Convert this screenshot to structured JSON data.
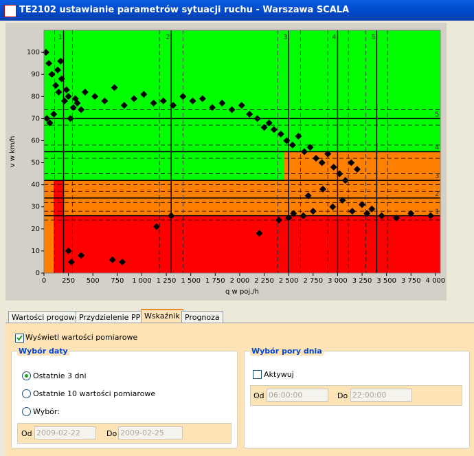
{
  "window": {
    "title": "TE2102 ustawianie parametrów sytuacji ruchu - Warszawa SCALA"
  },
  "chart_data": {
    "type": "scatter",
    "x_label": "q w poj./h",
    "y_label": "v w km/h",
    "color": "#000000",
    "xlim": [
      0,
      4050
    ],
    "ylim": [
      0,
      110
    ],
    "xticks": [
      0,
      250,
      500,
      750,
      {
        "value": 1000,
        "label": "1 000"
      },
      {
        "value": 1250,
        "label": "1 250"
      },
      {
        "value": 1500,
        "label": "1 500"
      },
      {
        "value": 1750,
        "label": "1 750"
      },
      {
        "value": 2000,
        "label": "2 000"
      },
      {
        "value": 2250,
        "label": "2 250"
      },
      {
        "value": 2500,
        "label": "2 500"
      },
      {
        "value": 2750,
        "label": "2 750"
      },
      {
        "value": 3000,
        "label": "3 000"
      },
      {
        "value": 3250,
        "label": "3 250"
      },
      {
        "value": 3500,
        "label": "3 500"
      },
      {
        "value": 3750,
        "label": "3 750"
      },
      {
        "value": 4000,
        "label": "4 000"
      }
    ],
    "yticks": [
      0,
      10,
      20,
      30,
      40,
      50,
      60,
      70,
      80,
      90,
      100
    ],
    "zones": [
      {
        "color": "#00ff00",
        "q": [
          0,
          4050
        ],
        "v": [
          55,
          110
        ]
      },
      {
        "color": "#ff8000",
        "q": [
          0,
          4050
        ],
        "v": [
          0,
          55
        ]
      },
      {
        "color": "#00ff00",
        "q": [
          0,
          2450
        ],
        "v": [
          42,
          55
        ]
      },
      {
        "color": "#ff0000",
        "q": [
          100,
          4050
        ],
        "v": [
          0,
          26
        ]
      },
      {
        "color": "#ff0000",
        "q": [
          100,
          200
        ],
        "v": [
          26,
          42
        ]
      }
    ],
    "q_thresholds": [
      {
        "value": 200,
        "label": "1"
      },
      {
        "value": 1300,
        "label": "2"
      },
      {
        "value": 2500,
        "label": "3"
      },
      {
        "value": 3000,
        "label": "4"
      },
      {
        "value": 3400,
        "label": "5"
      }
    ],
    "v_thresholds": [
      {
        "value": 26,
        "label": "1"
      },
      {
        "value": 34,
        "label": "2"
      },
      {
        "value": 42,
        "label": "3"
      },
      {
        "value": 55,
        "label": "4"
      },
      {
        "value": 70,
        "label": "5"
      }
    ],
    "q_dashed": [
      110,
      290,
      1180,
      1420,
      2390,
      2620,
      2900,
      3110,
      3290,
      3510
    ],
    "v_dashed": [
      24,
      28,
      32,
      37,
      40,
      45,
      52,
      58,
      67,
      74
    ],
    "x": [
      20,
      50,
      80,
      120,
      150,
      180,
      210,
      250,
      300,
      340,
      380,
      30,
      60,
      100,
      140,
      170,
      230,
      270,
      320,
      420,
      520,
      620,
      720,
      820,
      920,
      1020,
      1120,
      1220,
      1320,
      1420,
      1520,
      1620,
      1720,
      1820,
      1920,
      2020,
      2100,
      2180,
      2250,
      2300,
      2350,
      2420,
      2480,
      2540,
      2600,
      2660,
      2720,
      2780,
      2840,
      2900,
      2960,
      3020,
      3080,
      3140,
      3200,
      2700,
      2850,
      2950,
      3050,
      3150,
      3250,
      3350,
      2400,
      2550,
      2650,
      2750,
      3300,
      3450,
      3600,
      3750,
      3950,
      250,
      280,
      380,
      700,
      800,
      1150,
      1300,
      2500,
      2200
    ],
    "y": [
      100,
      95,
      90,
      85,
      82,
      88,
      78,
      80,
      75,
      77,
      74,
      70,
      68,
      72,
      92,
      96,
      83,
      70,
      79,
      82,
      80,
      78,
      84,
      76,
      79,
      81,
      77,
      78,
      76,
      80,
      78,
      79,
      75,
      77,
      74,
      76,
      72,
      70,
      66,
      68,
      65,
      63,
      60,
      58,
      62,
      55,
      57,
      52,
      50,
      54,
      48,
      45,
      42,
      50,
      47,
      35,
      38,
      30,
      33,
      28,
      31,
      29,
      24,
      27,
      26,
      28,
      27,
      26,
      25,
      27,
      26,
      10,
      5,
      8,
      6,
      5,
      21,
      26,
      25,
      18
    ]
  },
  "tabs": [
    "Wartości progowe",
    "Przydzielenie PPra",
    "Wskaźnik",
    "Prognoza"
  ],
  "show_measurements": "Wyświetl wartości pomiarowe",
  "date_group": {
    "title": "Wybór daty",
    "options": [
      "Ostatnie 3 dni",
      "Ostatnie 10 wartości pomiarowe",
      "Wybór:"
    ],
    "from_label": "Od",
    "from": "2009-02-22",
    "to_label": "Do",
    "to": "2009-02-25"
  },
  "time_group": {
    "title": "Wybór pory dnia",
    "activate": "Aktywuj",
    "from_label": "Od",
    "from": "06:00:00",
    "to_label": "Do",
    "to": "22:00:00"
  }
}
